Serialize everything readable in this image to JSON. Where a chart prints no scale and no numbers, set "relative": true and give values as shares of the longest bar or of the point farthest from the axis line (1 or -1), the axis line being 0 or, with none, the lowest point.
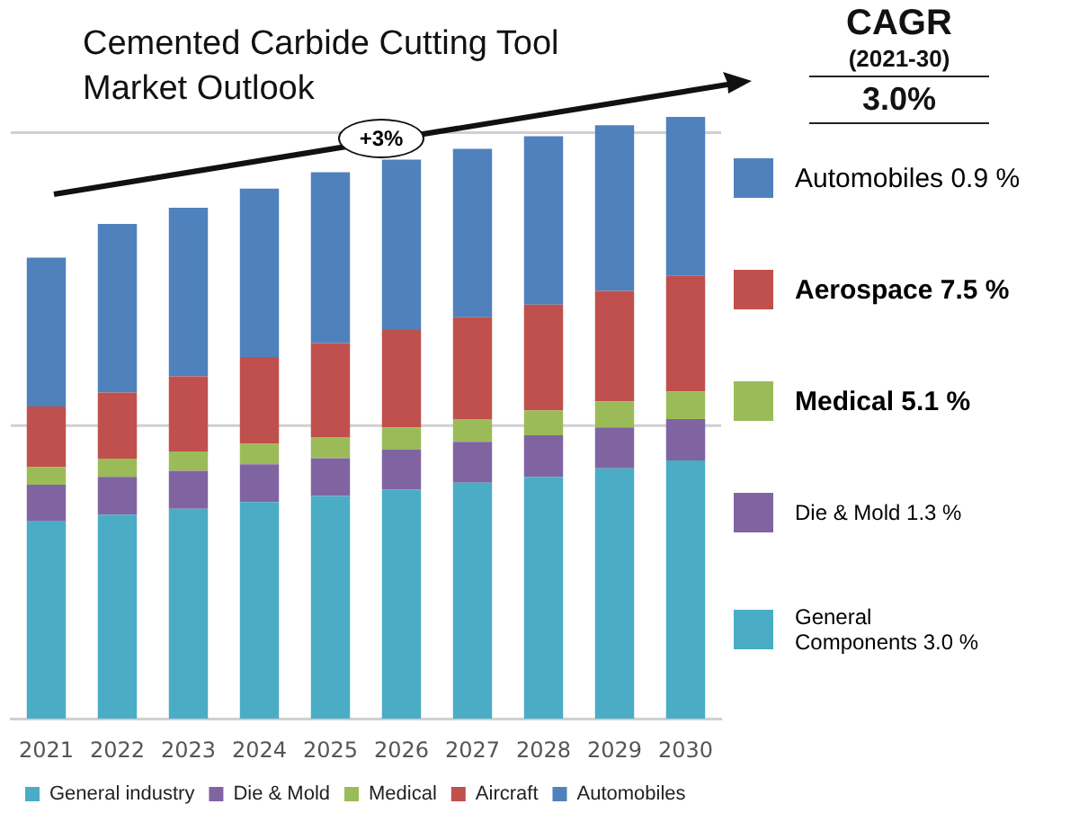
{
  "chart_data": {
    "type": "bar",
    "title": "Cemented Carbide Cutting Tool Market Outlook",
    "categories": [
      "2021",
      "2022",
      "2023",
      "2024",
      "2025",
      "2026",
      "2027",
      "2028",
      "2029",
      "2030"
    ],
    "stacked": true,
    "relative": true,
    "legend": "bottom",
    "ref_lines": [
      {
        "axis": "y",
        "value": 0.487,
        "color": "#d0d0d0"
      },
      {
        "axis": "y",
        "value": 0.974,
        "color": "#d0d0d0"
      }
    ],
    "series": [
      {
        "name": "General industry",
        "color": "#4bacc6",
        "values": [
          0.328,
          0.339,
          0.349,
          0.36,
          0.37,
          0.381,
          0.392,
          0.402,
          0.416,
          0.429
        ]
      },
      {
        "name": "Die & Mold",
        "color": "#8064a2",
        "values": [
          0.061,
          0.063,
          0.063,
          0.063,
          0.063,
          0.066,
          0.068,
          0.069,
          0.068,
          0.069
        ]
      },
      {
        "name": "Medical",
        "color": "#9bbb59",
        "values": [
          0.029,
          0.03,
          0.032,
          0.034,
          0.035,
          0.037,
          0.038,
          0.041,
          0.043,
          0.046
        ]
      },
      {
        "name": "Aircraft",
        "color": "#c0504d",
        "values": [
          0.101,
          0.11,
          0.125,
          0.144,
          0.156,
          0.162,
          0.169,
          0.176,
          0.184,
          0.192
        ]
      },
      {
        "name": "Automobiles",
        "color": "#4f81bd",
        "values": [
          0.247,
          0.28,
          0.28,
          0.28,
          0.284,
          0.283,
          0.28,
          0.28,
          0.275,
          0.264
        ]
      }
    ],
    "annotations": [
      "+3%",
      "CAGR",
      "(2021-30)",
      "3.0%",
      "Automobiles 0.9 %",
      "Aerospace 7.5 %",
      "Medical  5.1 %",
      "Die & Mold 1.3 %",
      "General Components 3.0 %"
    ]
  }
}
